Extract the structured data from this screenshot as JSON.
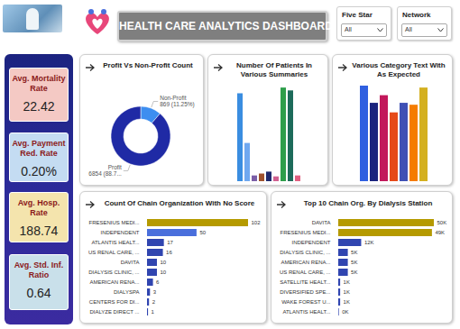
{
  "header": {
    "title": "HEALTH CARE ANALYTICS DASHBOARD"
  },
  "filters": [
    {
      "label": "Five Star",
      "value": "All"
    },
    {
      "label": "Network",
      "value": "All"
    }
  ],
  "kpis": [
    {
      "label": "Avg. Mortality Rate",
      "value": "22.42"
    },
    {
      "label": "Avg. Payment Red. Rate",
      "value": "0.20%"
    },
    {
      "label": "Avg. Hosp. Rate",
      "value": "188.74"
    },
    {
      "label": "Avg. Std. Inf. Ratio",
      "value": "0.64"
    }
  ],
  "chart_data": [
    {
      "type": "donut",
      "title": "Profit Vs Non-Profit Count",
      "categories": [
        "Non-Profit",
        "Profit"
      ],
      "values": [
        869,
        6854
      ],
      "value_labels": [
        "869 (11.25%)",
        "6854 (88.7..."
      ],
      "colors": [
        "#3d8ef0",
        "#1f2aa5"
      ],
      "data_labels": true
    },
    {
      "type": "bar",
      "title": "Number Of Patients In Various Summaries",
      "categories": [
        null,
        null,
        null,
        null,
        null,
        null,
        null,
        null,
        null
      ],
      "values": [
        92,
        40,
        6,
        8,
        10,
        5,
        98,
        95,
        6
      ],
      "colors": [
        "#3a8de0",
        "#6fa8f0",
        "#7b5ea7",
        "#a0522d",
        "#1f2a6e",
        "#d06090",
        "#2e9e4a",
        "#1d6b5a",
        "#e06080"
      ],
      "ylim": [
        0,
        100
      ],
      "tick_labels": false
    },
    {
      "type": "bar",
      "title": "Various Category Text With As Expected",
      "categories": [
        null,
        null,
        null,
        null,
        null,
        null,
        null
      ],
      "values": [
        100,
        82,
        90,
        72,
        82,
        80,
        98
      ],
      "colors": [
        "#3060e0",
        "#1a237e",
        "#c2185b",
        "#e64a19",
        "#3f51b5",
        "#f57c00",
        "#d4b020"
      ],
      "ylim": [
        0,
        100
      ],
      "tick_labels": false
    },
    {
      "type": "bar",
      "title": "Count Of Chain Organization With No Score",
      "orientation": "horizontal",
      "categories": [
        "FRESENIUS MEDI...",
        "INDEPENDENT",
        "ATLANTIS HEALT...",
        "US RENAL CARE, ...",
        "DAVITA",
        "DIALYSIS CLINIC, ...",
        "AMERICAN RENA...",
        "DIALYSPA",
        "CENTERS FOR DI...",
        "DIALYZE DIRECT ..."
      ],
      "values": [
        102,
        50,
        17,
        16,
        10,
        10,
        6,
        3,
        2,
        1
      ],
      "colors": [
        "#b59a00",
        "#4a6fdc",
        "#3045b0",
        "#3045b0",
        "#3045b0",
        "#3045b0",
        "#3045b0",
        "#3045b0",
        "#3045b0",
        "#3045b0"
      ],
      "xlim": [
        0,
        102
      ],
      "tick_labels": "y",
      "data_labels": true
    },
    {
      "type": "bar",
      "title": "Top 10 Chain Org. By Dialysis Station",
      "orientation": "horizontal",
      "categories": [
        "DAVITA",
        "FRESENIUS MEDI...",
        "INDEPENDENT",
        "DIALYSIS CLINIC, ...",
        "AMERICAN RENA...",
        "US RENAL CARE, ...",
        "SATELLITE HEALT...",
        "DIVERSIFIED SPE...",
        "WAKE FOREST U...",
        "ATLANTIS HEALT..."
      ],
      "values": [
        50000,
        49000,
        12000,
        5000,
        5000,
        5000,
        1000,
        1000,
        1000,
        300
      ],
      "value_labels": [
        "50K",
        "49K",
        "12K",
        "5K",
        "5K",
        "5K",
        "1K",
        "1K",
        "1K",
        "0K"
      ],
      "colors": [
        "#b59a00",
        "#b59a00",
        "#3045b0",
        "#3045b0",
        "#3045b0",
        "#3045b0",
        "#3045b0",
        "#3045b0",
        "#3045b0",
        "#3045b0"
      ],
      "xlim": [
        0,
        50000
      ],
      "tick_labels": "y",
      "data_labels": true
    }
  ]
}
